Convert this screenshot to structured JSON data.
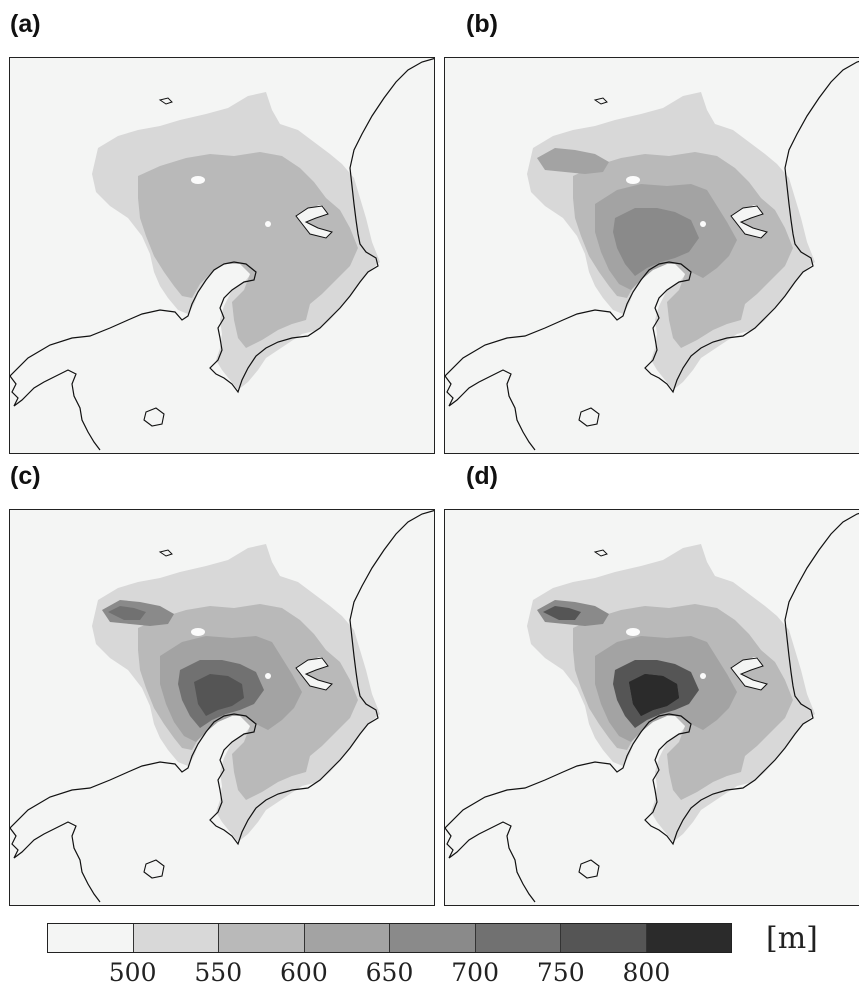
{
  "panels": [
    {
      "label": "(a)",
      "intensity": 0
    },
    {
      "label": "(b)",
      "intensity": 1
    },
    {
      "label": "(c)",
      "intensity": 2
    },
    {
      "label": "(d)",
      "intensity": 3
    }
  ],
  "colorbar": {
    "unit": "[m]",
    "levels": [
      500,
      550,
      600,
      650,
      700,
      750,
      800
    ],
    "tick_labels": [
      "500",
      "550",
      "600",
      "650",
      "700",
      "750",
      "800"
    ],
    "colors": [
      "#f4f5f4",
      "#d8d8d8",
      "#b9b9b9",
      "#a3a3a3",
      "#8a8a8a",
      "#717171",
      "#555555",
      "#2b2b2b"
    ]
  }
}
